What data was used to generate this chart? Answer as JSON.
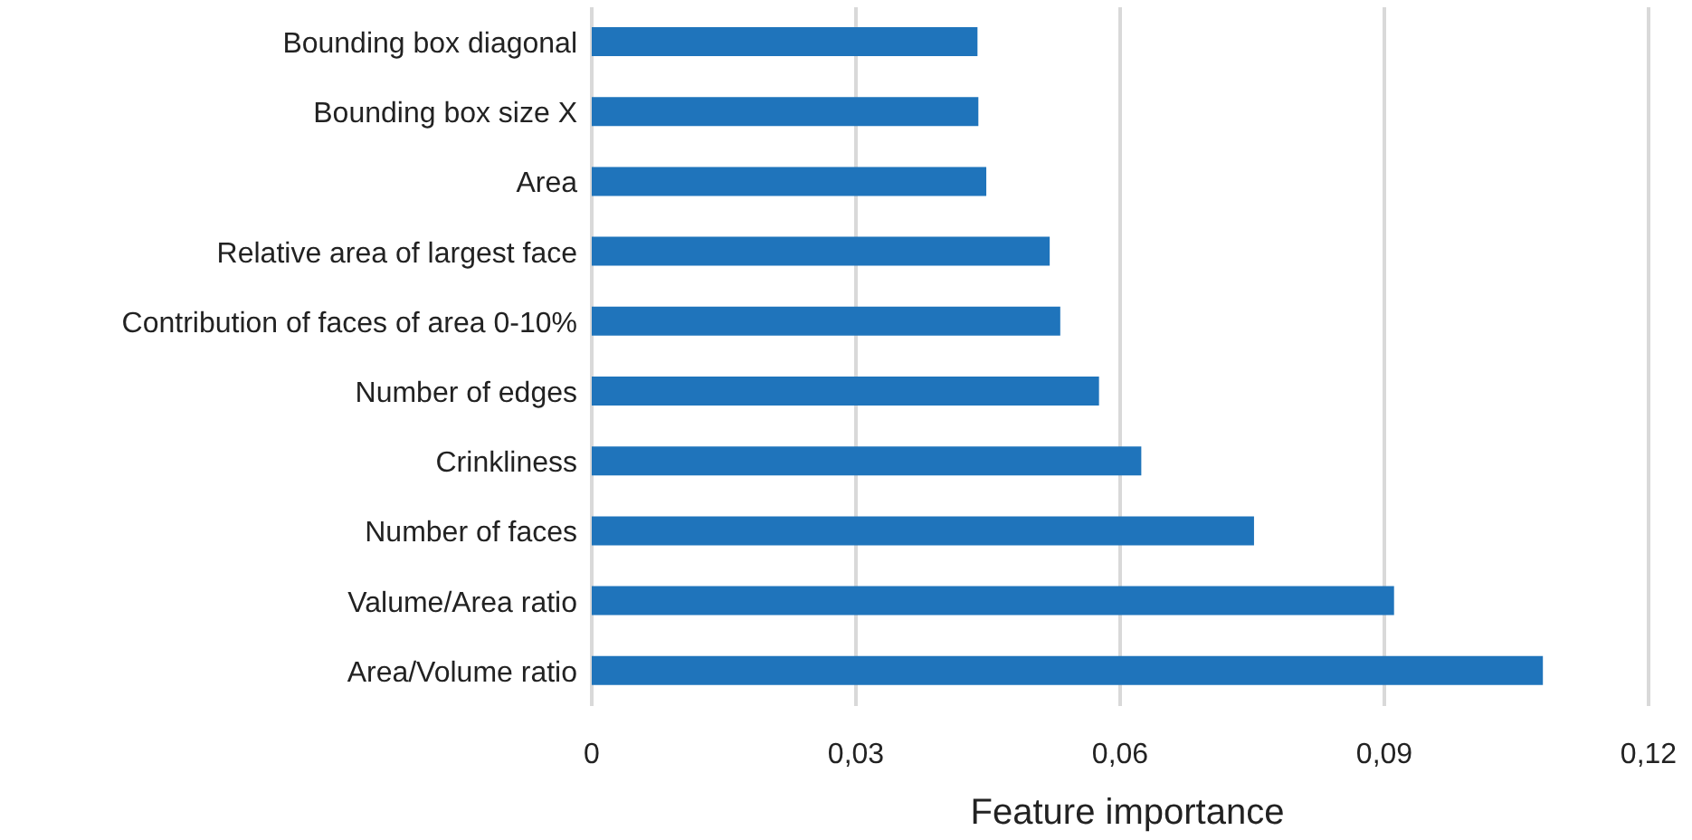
{
  "chart_data": {
    "type": "bar",
    "orientation": "horizontal",
    "xlabel": "Feature importance",
    "categories": [
      "Bounding box diagonal",
      "Bounding box size X",
      "Area",
      "Relative area of largest face",
      "Contribution of faces of area 0-10%",
      "Number of edges",
      "Crinkliness ",
      "Number of faces",
      "Valume/Area ratio",
      "Area/Volume ratio"
    ],
    "values": [
      0.0438,
      0.0439,
      0.0448,
      0.052,
      0.0532,
      0.0576,
      0.0624,
      0.0752,
      0.0911,
      0.108
    ],
    "color": "#1f74bb",
    "xlim": [
      0,
      0.12
    ],
    "xticks": [
      0,
      {
        "value": 0.03,
        "label": "0,03"
      },
      {
        "value": 0.06,
        "label": "0,06"
      },
      {
        "value": 0.09,
        "label": "0,09"
      },
      {
        "value": 0.12,
        "label": "0,12"
      }
    ],
    "grid": "x"
  }
}
